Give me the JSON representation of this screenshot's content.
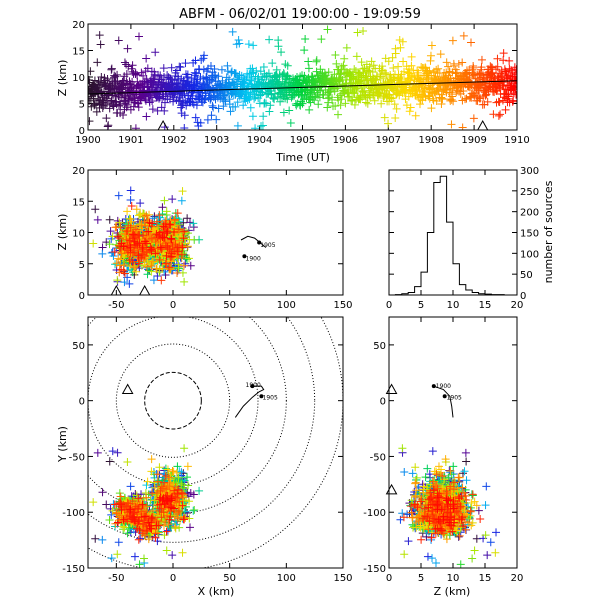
{
  "chart_data": [
    {
      "id": "time_height",
      "type": "scatter",
      "title": "ABFM - 06/02/01 19:00:00 - 19:09:59",
      "xlabel": "Time (UT)",
      "ylabel": "Z (km)",
      "xlim": [
        1900,
        1910
      ],
      "ylim": [
        0,
        20
      ],
      "x_ticks": [
        "1900",
        "1901",
        "1902",
        "1903",
        "1904",
        "1905",
        "1906",
        "1907",
        "1908",
        "1909",
        "1910"
      ],
      "y_ticks": [
        "0",
        "5",
        "10",
        "15",
        "20"
      ],
      "trend": {
        "x": [
          1900,
          1910
        ],
        "y": [
          6.8,
          9.3
        ]
      },
      "stations": {
        "x": [
          1901.75,
          1909.2
        ],
        "y": [
          0,
          0
        ]
      },
      "color_scale": "time-rainbow (purple→blue→cyan→green→yellow→red)",
      "approx_sources": 2000
    },
    {
      "id": "xz_projection",
      "type": "scatter",
      "xlim": [
        -75,
        150
      ],
      "ylim": [
        0,
        20
      ],
      "ylabel": "Z (km)",
      "x_ticks": [
        "-50",
        "0",
        "50",
        "100",
        "150"
      ],
      "y_ticks": [
        "0",
        "5",
        "10",
        "15",
        "20"
      ],
      "clusters": [
        {
          "x": -45,
          "z": 9,
          "sx": 6,
          "sz": 4
        },
        {
          "x": -5,
          "z": 9,
          "sx": 6,
          "sz": 3.5
        }
      ],
      "track_labels": [
        "1905",
        "1900"
      ],
      "stations": {
        "x": [
          -50,
          -25
        ],
        "z": [
          0,
          0
        ]
      }
    },
    {
      "id": "histogram",
      "type": "bar",
      "ylabel": "number of sources",
      "xlim": [
        0,
        20
      ],
      "ylim": [
        0,
        300
      ],
      "x_ticks": [
        "0",
        "5",
        "10",
        "15",
        "20"
      ],
      "y_ticks": [
        "0",
        "50",
        "100",
        "150",
        "200",
        "250",
        "300"
      ],
      "bin_edges": [
        0,
        1,
        2,
        3,
        4,
        5,
        6,
        7,
        8,
        9,
        10,
        11,
        12,
        13,
        14,
        15,
        16,
        17,
        18,
        19,
        20
      ],
      "counts": [
        0,
        1,
        3,
        6,
        20,
        55,
        150,
        270,
        285,
        175,
        75,
        25,
        12,
        6,
        3,
        2,
        1,
        1,
        0,
        0
      ]
    },
    {
      "id": "plan_view",
      "type": "scatter",
      "xlabel": "X (km)",
      "ylabel": "Y (km)",
      "xlim": [
        -75,
        150
      ],
      "ylim": [
        -150,
        75
      ],
      "x_ticks": [
        "-50",
        "0",
        "50",
        "100",
        "150"
      ],
      "y_ticks": [
        "-150",
        "-100",
        "-50",
        "0",
        "50"
      ],
      "range_rings_km": [
        25,
        50,
        75,
        100,
        125,
        150
      ],
      "track_labels": [
        "1900",
        "1905"
      ],
      "station": {
        "x": -40,
        "y": 10
      },
      "clusters": [
        {
          "x": -38,
          "y": -100,
          "sx": 6,
          "sy": 6
        },
        {
          "x": -3,
          "y": -88,
          "sx": 8,
          "sy": 10
        },
        {
          "x": -22,
          "y": -110,
          "sx": 5,
          "sy": 5
        }
      ]
    },
    {
      "id": "zy_projection",
      "type": "scatter",
      "xlabel": "Z (km)",
      "xlim": [
        0,
        20
      ],
      "ylim": [
        -150,
        75
      ],
      "x_ticks": [
        "0",
        "5",
        "10",
        "15",
        "20"
      ],
      "y_ticks": [
        "-150",
        "-100",
        "-50",
        "0",
        "50"
      ],
      "track_labels": [
        "1900",
        "1905"
      ],
      "stations": {
        "z": [
          0,
          0
        ],
        "y": [
          10,
          -80
        ]
      },
      "clusters": [
        {
          "z": 8,
          "y": -92,
          "sz": 2.8,
          "sy": 12
        }
      ]
    }
  ]
}
